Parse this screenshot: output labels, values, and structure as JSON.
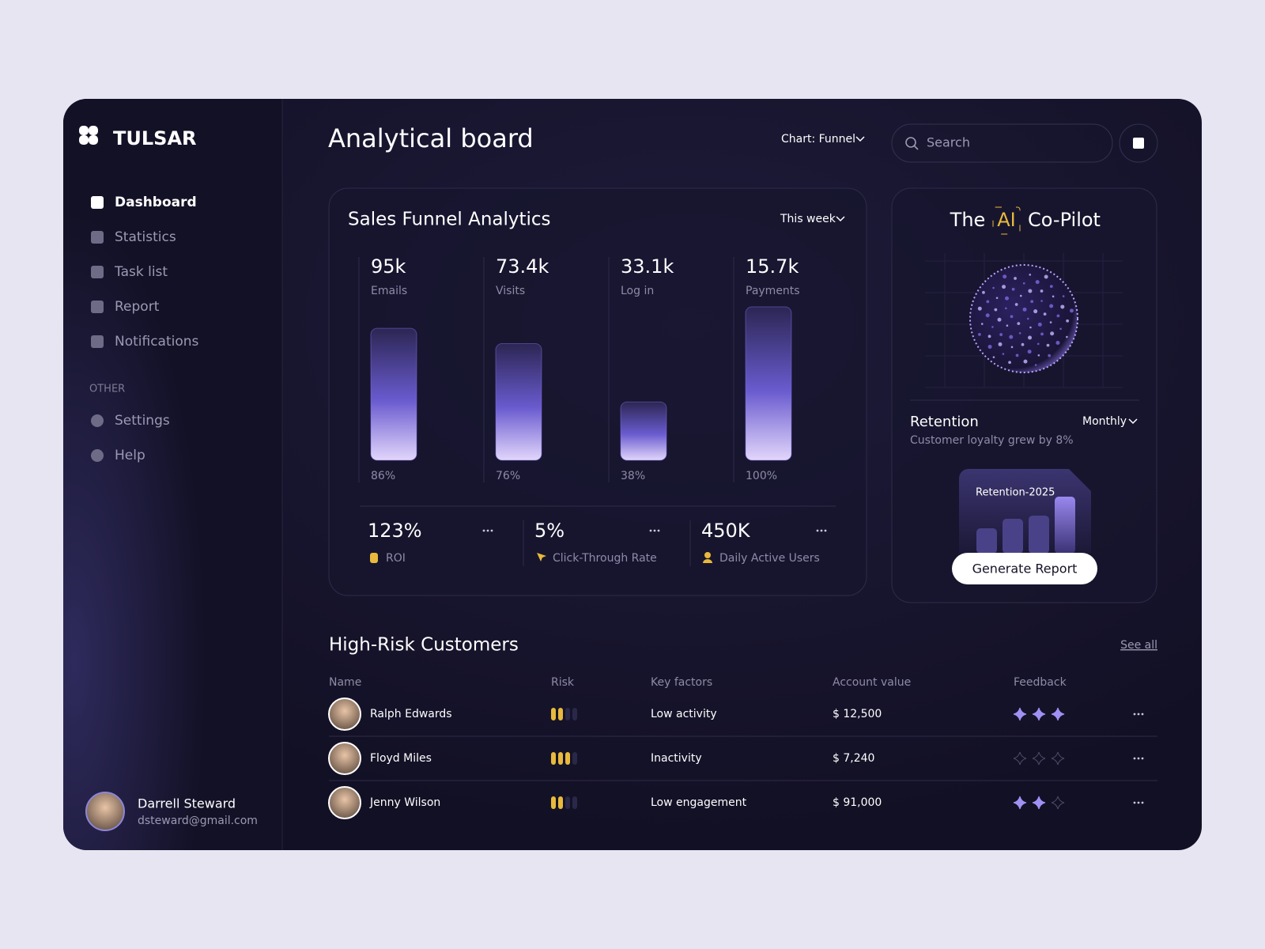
{
  "sidebar": {
    "brand": "TULSAR",
    "nav": [
      "Dashboard",
      "Statistics",
      "Task list",
      "Report",
      "Notifications"
    ],
    "other_heading": "OTHER",
    "other": [
      "Settings",
      "Help"
    ],
    "user": {
      "name": "Darrell Steward",
      "email": "dsteward@gmail.com"
    }
  },
  "header": {
    "title": "Analytical board",
    "chart_selector": "Chart: Funnel",
    "search_placeholder": "Search"
  },
  "funnel": {
    "title": "Sales Funnel Analytics",
    "period": "This week",
    "stages": [
      {
        "value": "95k",
        "name": "Emails",
        "percent": {
          "value": 86,
          "label": "86%"
        }
      },
      {
        "value": "73.4k",
        "name": "Visits",
        "percent": {
          "value": 76,
          "label": "76%"
        }
      },
      {
        "value": "33.1k",
        "name": "Log in",
        "percent": {
          "value": 38,
          "label": "38%"
        }
      },
      {
        "value": "15.7k",
        "name": "Payments",
        "percent": {
          "value": 100,
          "label": "100%"
        }
      }
    ],
    "stats": [
      {
        "value": "123%",
        "label": "ROI"
      },
      {
        "value": "5%",
        "label": "Click-Through Rate"
      },
      {
        "value": "450K",
        "label": "Daily Active Users"
      }
    ]
  },
  "copilot": {
    "title_before": "The",
    "title_highlight": "AI",
    "title_after": "Co-Pilot",
    "retention": {
      "title": "Retention",
      "period": "Monthly",
      "subtitle": "Customer loyalty grew by 8%",
      "chart_title": "Retention-2025",
      "bars": [
        32,
        44,
        48,
        72
      ]
    },
    "button": "Generate Report"
  },
  "customers": {
    "title": "High-Risk Customers",
    "see_all": "See all",
    "columns": [
      "Name",
      "Risk",
      "Key factors",
      "Account value",
      "Feedback"
    ],
    "rows": [
      {
        "name": "Ralph Edwards",
        "risk": 2,
        "key_factor": "Low activity",
        "account_value": "$ 12,500",
        "feedback": 3
      },
      {
        "name": "Floyd Miles",
        "risk": 3,
        "key_factor": "Inactivity",
        "account_value": "$ 7,240",
        "feedback": 0
      },
      {
        "name": "Jenny Wilson",
        "risk": 2,
        "key_factor": "Low engagement",
        "account_value": "$ 91,000",
        "feedback": 2
      }
    ]
  }
}
